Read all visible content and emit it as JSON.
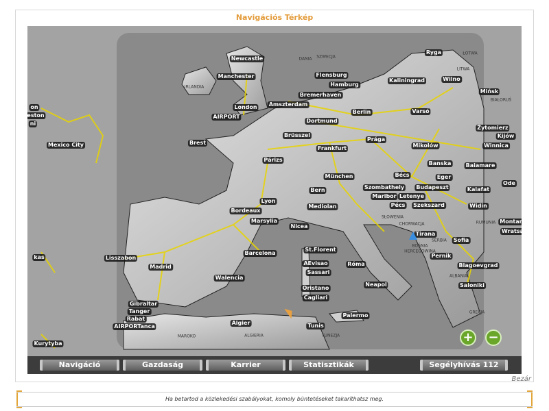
{
  "title": "Navigációs Térkép",
  "map": {
    "cities": [
      "Newcastle",
      "Manchester",
      "London",
      "AIRPORT",
      "Mexico City",
      "Brest",
      "Amszterdam",
      "Bremerhaven",
      "Flensburg",
      "Hamburg",
      "Berlin",
      "Dortmund",
      "Brüsszel",
      "Frankfurt",
      "Prága",
      "Párizs",
      "München",
      "Bern",
      "Lyon",
      "Bordeaux",
      "Marsylia",
      "Mediolan",
      "Nicea",
      "Varsó",
      "Kaliningrad",
      "Wilno",
      "Ryga",
      "Mińsk",
      "Żytomierz",
      "Kijów",
      "Winnica",
      "Mikolów",
      "Banska",
      "Bécs",
      "Eger",
      "Budapeszt",
      "Baiamare",
      "Kalafat",
      "Ode",
      "Szombathely",
      "Maribor",
      "Letenye",
      "Pécs",
      "Szekszard",
      "Widin",
      "Montana",
      "Wratsa",
      "Tirana",
      "Sofia",
      "Pernik",
      "Blagoevgrad",
      "Saloniki",
      "Róma",
      "St.Florent",
      "AEvisao",
      "Sassari",
      "Oristano",
      "Cagliari",
      "Neapol",
      "Palermo",
      "Tunis",
      "Lisszabon",
      "Madrid",
      "Barcelona",
      "Walencia",
      "Gibraltar",
      "Tanger",
      "Rabat",
      "AIRPORTanca",
      "Algier",
      "Kurytyba",
      "kas",
      "on",
      "eston",
      "ni"
    ],
    "countries": [
      "IRLANDIA",
      "DANIA",
      "SZWECJA",
      "ŁOTWA",
      "LITWA",
      "BIAŁORUŚ",
      "SŁOWENIA",
      "CHORWACJA",
      "BOŚNIA",
      "HERCEGOWINA",
      "SERBIA",
      "RUMUNIA",
      "ALBANIA",
      "GRECJA",
      "MAROKO",
      "ALGIERIA",
      "TUNEZJA"
    ],
    "zoom_in": "+",
    "zoom_out": "−",
    "player_marker_color": "#3a8ee0",
    "destination_marker_color": "#e8a040",
    "road_color": "#e8d400"
  },
  "nav": [
    "Navigáció",
    "Gazdaság",
    "Karrier",
    "Statisztikák",
    "Segélyhívás 112"
  ],
  "close": "Bezár",
  "tip": "Ha betartod a közlekedési szabályokat, komoly büntetéseket takaríthatsz meg."
}
